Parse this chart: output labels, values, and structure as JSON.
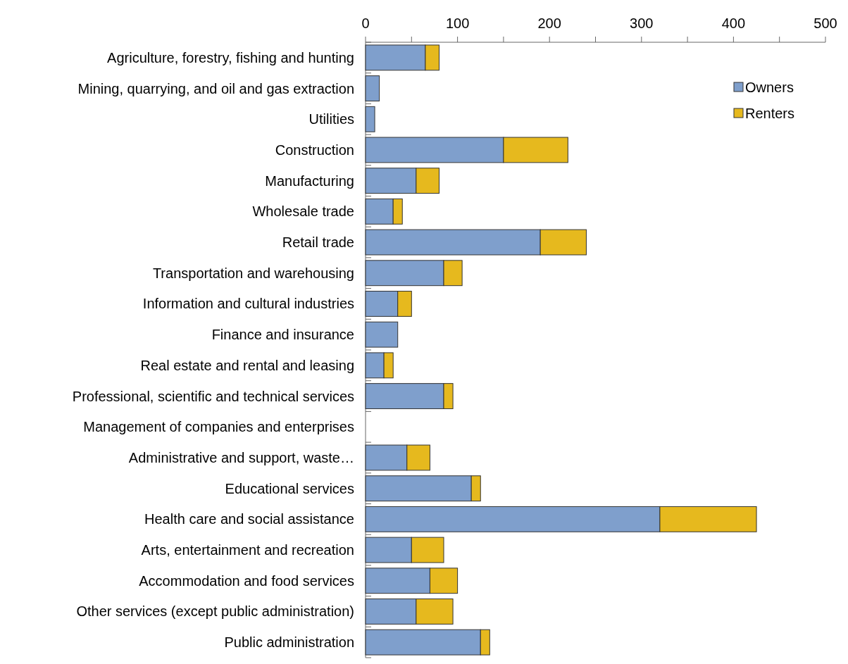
{
  "chart_data": {
    "type": "bar",
    "orientation": "horizontal",
    "stacked": true,
    "categories": [
      "Agriculture, forestry, fishing and hunting",
      "Mining, quarrying, and oil and gas extraction",
      "Utilities",
      "Construction",
      "Manufacturing",
      "Wholesale trade",
      "Retail trade",
      "Transportation and warehousing",
      "Information and cultural industries",
      "Finance and insurance",
      "Real estate and rental and leasing",
      "Professional, scientific and technical services",
      "Management of companies and enterprises",
      "Administrative and support, waste…",
      "Educational services",
      "Health care and social assistance",
      "Arts, entertainment and recreation",
      "Accommodation and food services",
      "Other services (except public administration)",
      "Public administration"
    ],
    "series": [
      {
        "name": "Owners",
        "color": "#7f9fcc",
        "values": [
          65,
          15,
          10,
          150,
          55,
          30,
          190,
          85,
          35,
          35,
          20,
          85,
          0,
          45,
          115,
          320,
          50,
          70,
          55,
          125
        ]
      },
      {
        "name": "Renters",
        "color": "#e6b91e",
        "values": [
          15,
          0,
          0,
          70,
          25,
          10,
          50,
          20,
          15,
          0,
          10,
          10,
          0,
          25,
          10,
          105,
          35,
          30,
          40,
          10
        ]
      }
    ],
    "xlim": [
      0,
      500
    ],
    "xticks": [
      0,
      {
        "value": 50,
        "label": null
      },
      100,
      {
        "value": 150,
        "label": null
      },
      200,
      {
        "value": 250,
        "label": null
      },
      300,
      {
        "value": 350,
        "label": null
      },
      400,
      {
        "value": 450,
        "label": null
      },
      500
    ],
    "legend": "top right",
    "grid": false
  }
}
